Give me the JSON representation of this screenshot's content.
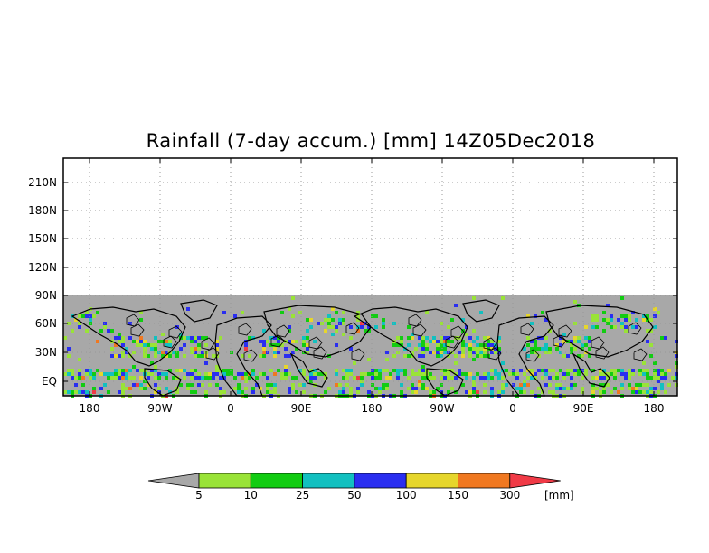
{
  "title": "Rainfall (7-day accum.) [mm] 14Z05Dec2018",
  "map": {
    "lat_labels": [
      "210N",
      "180N",
      "150N",
      "120N",
      "90N",
      "60N",
      "30N",
      "EQ"
    ],
    "lon_labels": [
      "180",
      "90W",
      "0",
      "90E",
      "180",
      "90W",
      "0",
      "90E",
      "180"
    ],
    "no_data_color": "#a8a8a8",
    "grid": "dotted"
  },
  "colorbar": {
    "unit_label": "[mm]",
    "tick_labels": [
      "5",
      "10",
      "25",
      "50",
      "100",
      "150",
      "300"
    ],
    "colors": [
      "#a8a8a8",
      "#99e337",
      "#12cc12",
      "#12c0c0",
      "#2a2ef0",
      "#e6d62c",
      "#f07820",
      "#f03a46"
    ]
  }
}
